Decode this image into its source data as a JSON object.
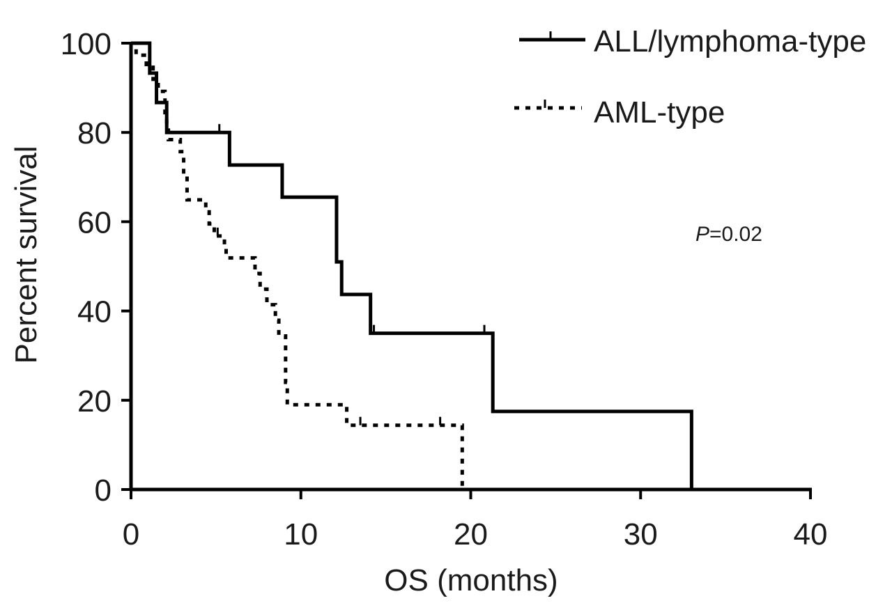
{
  "chart_data": {
    "type": "line",
    "subtype": "kaplan-meier",
    "xlabel": "OS (months)",
    "ylabel": "Percent survival",
    "xlim": [
      0,
      40
    ],
    "ylim": [
      0,
      100
    ],
    "xticks": [
      0,
      10,
      20,
      30,
      40
    ],
    "yticks": [
      0,
      20,
      40,
      60,
      80,
      100
    ],
    "legend_position": "top-right",
    "annotation": {
      "italic": "P",
      "rest": "=0.02"
    },
    "series": [
      {
        "name": "ALL/lymphoma-type",
        "style": "solid",
        "color": "#000000",
        "steps": [
          [
            0,
            100
          ],
          [
            1.1,
            93.3
          ],
          [
            1.5,
            86.7
          ],
          [
            2.1,
            80
          ],
          [
            5.8,
            72.7
          ],
          [
            8.9,
            65.5
          ],
          [
            12.1,
            51
          ],
          [
            12.4,
            43.7
          ],
          [
            14.1,
            35
          ],
          [
            21.3,
            17.5
          ],
          [
            33,
            0
          ]
        ],
        "censored": [
          [
            5.2,
            80
          ],
          [
            14.3,
            35
          ],
          [
            20.8,
            35
          ]
        ]
      },
      {
        "name": "AML-type",
        "style": "dotted",
        "color": "#000000",
        "steps": [
          [
            0,
            100
          ],
          [
            0.3,
            97.3
          ],
          [
            0.9,
            94.6
          ],
          [
            1.3,
            91.9
          ],
          [
            1.6,
            89.2
          ],
          [
            2,
            83.8
          ],
          [
            2.1,
            81.1
          ],
          [
            2.2,
            78.4
          ],
          [
            2.9,
            75.7
          ],
          [
            3.1,
            70.3
          ],
          [
            3.3,
            64.9
          ],
          [
            4.4,
            62.2
          ],
          [
            4.6,
            59.5
          ],
          [
            4.9,
            56.8
          ],
          [
            5.5,
            54
          ],
          [
            5.6,
            51.9
          ],
          [
            7.3,
            48.4
          ],
          [
            7.6,
            44.9
          ],
          [
            8,
            41.4
          ],
          [
            8.5,
            37.9
          ],
          [
            8.7,
            34.4
          ],
          [
            9.1,
            24
          ],
          [
            9.2,
            19
          ],
          [
            12.7,
            14.4
          ],
          [
            19.5,
            0
          ]
        ],
        "censored": [
          [
            5.1,
            56.8
          ],
          [
            13.5,
            14.4
          ],
          [
            18.2,
            14.4
          ]
        ]
      }
    ]
  }
}
